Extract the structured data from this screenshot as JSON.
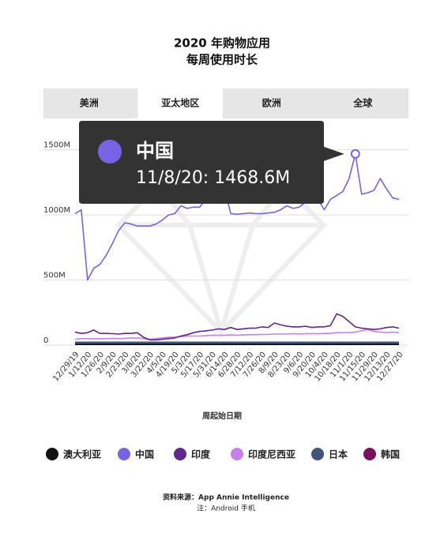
{
  "chart_data": {
    "type": "line",
    "title": "2020 年购物应用",
    "subtitle": "每周使用时长",
    "tabs": [
      "美洲",
      "亚太地区",
      "欧洲",
      "全球"
    ],
    "selected_tab": 1,
    "tooltip": {
      "name": "中国",
      "text": "11/8/20: 1468.6M",
      "series": 1,
      "index": 45
    },
    "xlabel": "周起始日期",
    "categories": [
      "12/29/19",
      null,
      "1/12/20",
      null,
      "1/26/20",
      null,
      "2/9/20",
      null,
      "2/23/20",
      null,
      "3/8/20",
      null,
      "3/22/20",
      null,
      "4/5/20",
      null,
      "4/19/20",
      null,
      "5/3/20",
      null,
      "5/17/20",
      null,
      "5/31/20",
      null,
      "6/14/20",
      null,
      "6/28/20",
      null,
      "7/12/20",
      null,
      "7/26/20",
      null,
      "8/9/20",
      null,
      "8/23/20",
      null,
      "9/6/20",
      null,
      "9/20/20",
      null,
      "10/4/20",
      null,
      "10/18/20",
      null,
      "11/1/20",
      null,
      "11/15/20",
      null,
      "11/29/20",
      null,
      "12/13/20",
      null,
      "12/27/20"
    ],
    "ylim": [
      0,
      1650
    ],
    "yticks": [
      0,
      {
        "value": 500,
        "label": "500M"
      },
      {
        "value": 1000,
        "label": "1000M"
      },
      {
        "value": 1500,
        "label": "1500M"
      }
    ],
    "grid": true,
    "series": [
      {
        "name": "澳大利亚",
        "color": "#111111",
        "values": [
          5,
          5,
          5,
          5,
          5,
          5,
          5,
          5,
          5,
          5,
          5,
          5,
          5,
          5,
          5,
          5,
          5,
          5,
          5,
          5,
          5,
          5,
          5,
          5,
          5,
          5,
          5,
          5,
          5,
          5,
          5,
          5,
          5,
          5,
          5,
          5,
          5,
          5,
          5,
          5,
          5,
          5,
          5,
          5,
          5,
          5,
          5,
          5,
          5,
          5,
          5,
          5,
          5
        ]
      },
      {
        "name": "中国",
        "color": "#7664e4",
        "values": [
          1010,
          1040,
          500,
          590,
          620,
          690,
          780,
          880,
          940,
          930,
          915,
          915,
          915,
          930,
          960,
          1000,
          1010,
          1070,
          1050,
          1060,
          1060,
          1120,
          1110,
          1200,
          1200,
          1010,
          1005,
          1010,
          1015,
          1010,
          1010,
          1015,
          1020,
          1040,
          1070,
          1050,
          1060,
          1100,
          1140,
          1120,
          1040,
          1120,
          1150,
          1180,
          1280,
          1468.6,
          1160,
          1170,
          1190,
          1280,
          1200,
          1130,
          1120
        ]
      },
      {
        "name": "印度",
        "color": "#62268f",
        "values": [
          100,
          90,
          95,
          115,
          90,
          90,
          88,
          85,
          90,
          90,
          95,
          60,
          40,
          40,
          45,
          50,
          55,
          70,
          80,
          95,
          105,
          110,
          115,
          125,
          120,
          135,
          120,
          125,
          130,
          130,
          140,
          135,
          170,
          155,
          145,
          140,
          140,
          145,
          135,
          140,
          140,
          150,
          240,
          220,
          180,
          140,
          130,
          125,
          120,
          125,
          135,
          140,
          130
        ]
      },
      {
        "name": "印度尼西亚",
        "color": "#c77ee8",
        "values": [
          45,
          50,
          50,
          48,
          50,
          50,
          52,
          50,
          52,
          55,
          55,
          50,
          45,
          50,
          55,
          60,
          60,
          65,
          70,
          70,
          70,
          72,
          75,
          75,
          75,
          78,
          75,
          78,
          80,
          80,
          82,
          82,
          85,
          85,
          85,
          88,
          85,
          88,
          88,
          88,
          90,
          90,
          95,
          95,
          95,
          100,
          110,
          120,
          105,
          100,
          95,
          100,
          95
        ]
      },
      {
        "name": "日本",
        "color": "#3e5478",
        "values": [
          20,
          20,
          20,
          20,
          20,
          20,
          20,
          20,
          20,
          20,
          20,
          20,
          20,
          20,
          20,
          20,
          20,
          20,
          20,
          20,
          20,
          20,
          20,
          20,
          20,
          20,
          20,
          20,
          20,
          20,
          20,
          20,
          20,
          20,
          20,
          20,
          20,
          20,
          20,
          20,
          20,
          20,
          20,
          20,
          20,
          20,
          20,
          20,
          20,
          20,
          20,
          20,
          20
        ]
      },
      {
        "name": "韩国",
        "color": "#7a1060",
        "values": [
          10,
          10,
          10,
          10,
          10,
          10,
          10,
          10,
          10,
          10,
          10,
          10,
          10,
          10,
          10,
          10,
          10,
          10,
          10,
          10,
          10,
          10,
          10,
          10,
          10,
          10,
          10,
          10,
          10,
          10,
          10,
          10,
          10,
          10,
          10,
          10,
          10,
          10,
          10,
          10,
          10,
          10,
          10,
          10,
          10,
          10,
          10,
          10,
          10,
          10,
          10,
          10,
          10
        ]
      }
    ],
    "source": "资料来源：App Annie Intelligence",
    "note": "注：Android 手机"
  }
}
